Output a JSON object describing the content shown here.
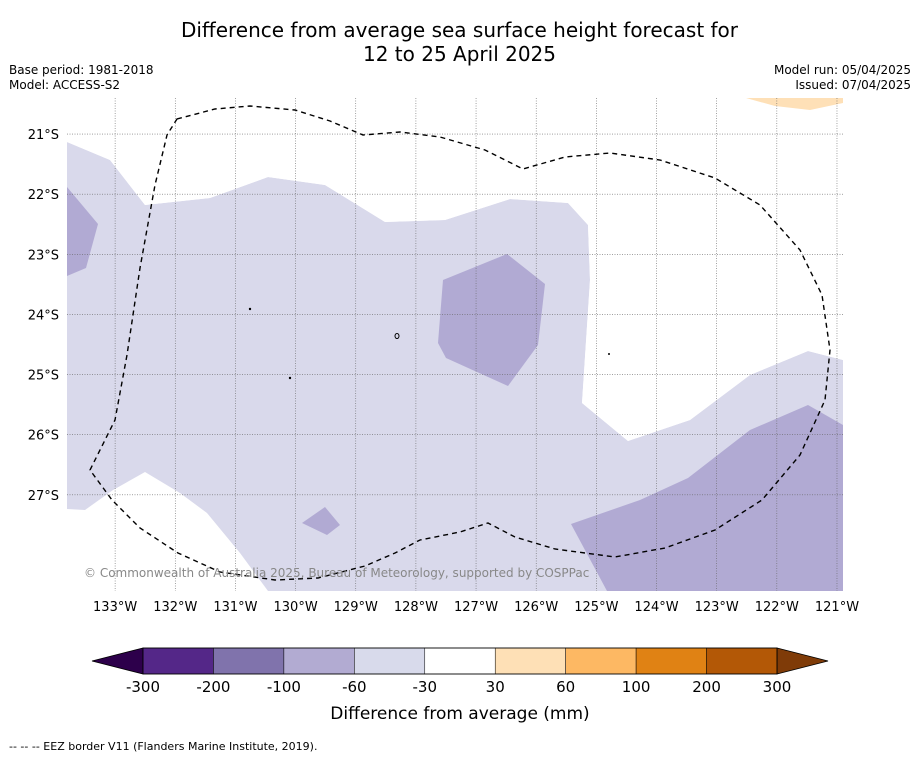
{
  "header": {
    "title_line1": "Difference from average sea surface height forecast for",
    "title_line2": "12 to 25 April 2025",
    "base_period": "Base period: 1981-2018",
    "model": "Model: ACCESS-S2",
    "model_run": "Model run: 05/04/2025",
    "issued": "Issued: 07/04/2025"
  },
  "map": {
    "lon_range": [
      -133.8,
      -120.9
    ],
    "lat_range": [
      -28.6,
      -20.4
    ],
    "lon_ticks": [
      {
        "value": -133,
        "label": "133°W"
      },
      {
        "value": -132,
        "label": "132°W"
      },
      {
        "value": -131,
        "label": "131°W"
      },
      {
        "value": -130,
        "label": "130°W"
      },
      {
        "value": -129,
        "label": "129°W"
      },
      {
        "value": -128,
        "label": "128°W"
      },
      {
        "value": -127,
        "label": "127°W"
      },
      {
        "value": -126,
        "label": "126°W"
      },
      {
        "value": -125,
        "label": "125°W"
      },
      {
        "value": -124,
        "label": "124°W"
      },
      {
        "value": -123,
        "label": "123°W"
      },
      {
        "value": -122,
        "label": "122°W"
      },
      {
        "value": -121,
        "label": "121°W"
      }
    ],
    "lat_ticks": [
      {
        "value": -21,
        "label": "21°S"
      },
      {
        "value": -22,
        "label": "22°S"
      },
      {
        "value": -23,
        "label": "23°S"
      },
      {
        "value": -24,
        "label": "24°S"
      },
      {
        "value": -25,
        "label": "25°S"
      },
      {
        "value": -26,
        "label": "26°S"
      },
      {
        "value": -27,
        "label": "27°S"
      }
    ],
    "copyright": "© Commonwealth of Australia 2025, Bureau of Meteorology, supported by COSPPac",
    "gridlines": true,
    "colors": {
      "band_-60_-30": "#d9d9eb",
      "band_-100_-60": "#b1aad3",
      "band_30_60": "#fee0b7"
    }
  },
  "colorbar": {
    "label": "Difference from average (mm)",
    "ticks": [
      "-300",
      "-200",
      "-100",
      "-60",
      "-30",
      "30",
      "60",
      "100",
      "200",
      "300"
    ],
    "under_color": "#2d004b",
    "over_color": "#7f3b08",
    "colors": [
      "#542788",
      "#8073ac",
      "#b2abd2",
      "#d8daeb",
      "#ffffff",
      "#fee0b6",
      "#fdb863",
      "#e08214",
      "#b35806"
    ]
  },
  "footer": {
    "legend_text": "--  --  -- EEZ border V11 (Flanders Marine Institute, 2019)."
  }
}
